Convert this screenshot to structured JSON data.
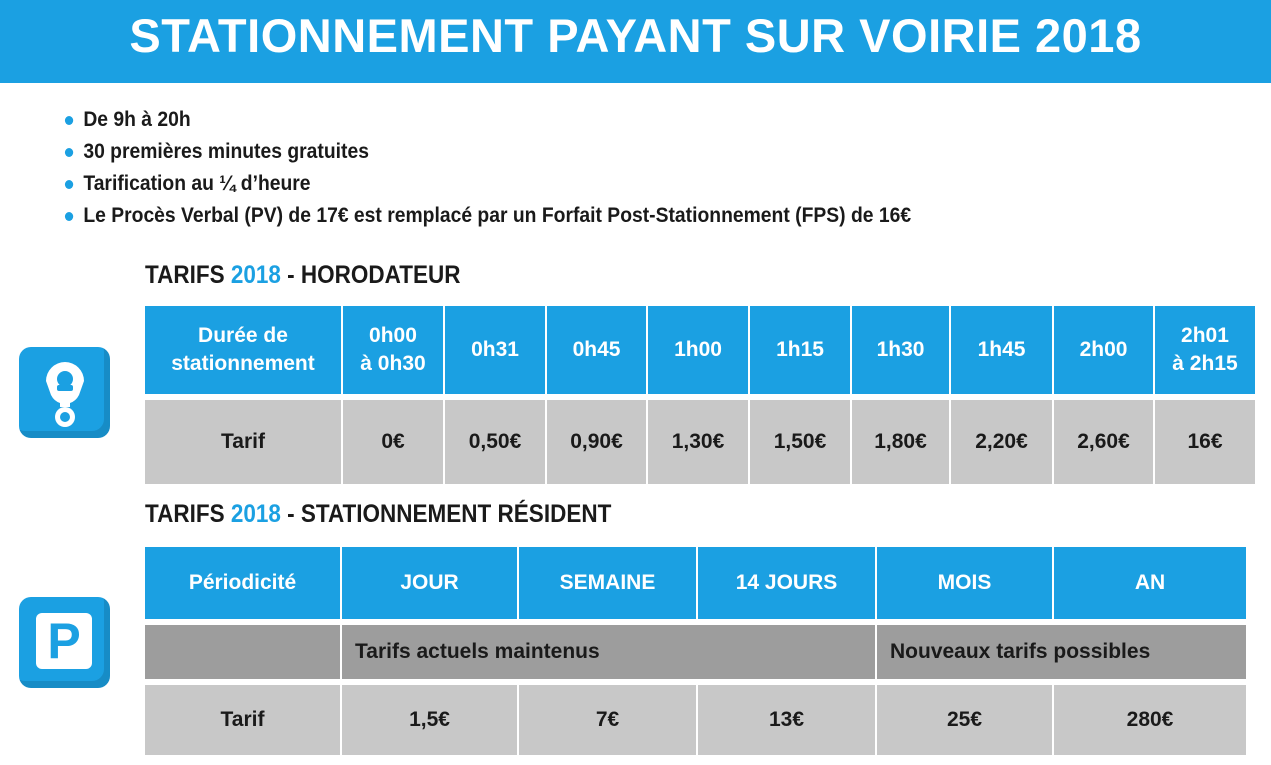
{
  "header": {
    "title": "STATIONNEMENT PAYANT SUR VOIRIE 2018"
  },
  "bullets": [
    "De 9h à 20h",
    "30 premières minutes gratuites",
    "Tarification au ¼ d’heure",
    "Le Procès Verbal (PV) de 17€ est remplacé par un Forfait Post-Stationnement (FPS) de 16€"
  ],
  "horodateur": {
    "title_prefix": "TARIFS",
    "title_year": "2018",
    "title_suffix": " - HORODATEUR",
    "icon": "parking-meter-icon",
    "headers": [
      "Durée de\nstationnement",
      "0h00\nà 0h30",
      "0h31",
      "0h45",
      "1h00",
      "1h15",
      "1h30",
      "1h45",
      "2h00",
      "2h01\nà 2h15"
    ],
    "row_label": "Tarif",
    "values": [
      "0€",
      "0,50€",
      "0,90€",
      "1,30€",
      "1,50€",
      "1,80€",
      "2,20€",
      "2,60€",
      "16€"
    ]
  },
  "resident": {
    "title_prefix": "TARIFS",
    "title_year": "2018",
    "title_suffix": " - STATIONNEMENT RÉSIDENT",
    "icon": "parking-p-icon",
    "icon_letter": "P",
    "headers": [
      "Périodicité",
      "JOUR",
      "SEMAINE",
      "14 JOURS",
      "MOIS",
      "AN"
    ],
    "group_current": "Tarifs actuels maintenus",
    "group_new": "Nouveaux tarifs possibles",
    "row_label": "Tarif",
    "values": [
      "1,5€",
      "7€",
      "13€",
      "25€",
      "280€"
    ]
  },
  "colors": {
    "accent": "#1ba0e2",
    "cell_light": "#c8c8c8",
    "cell_dark": "#9d9d9d"
  }
}
